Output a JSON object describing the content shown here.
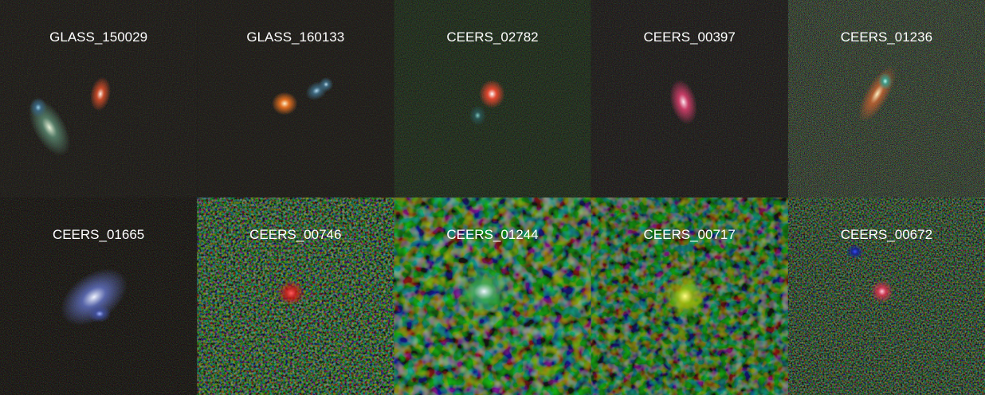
{
  "panels": [
    {
      "label": "GLASS_150029"
    },
    {
      "label": "GLASS_160133"
    },
    {
      "label": "CEERS_02782"
    },
    {
      "label": "CEERS_00397"
    },
    {
      "label": "CEERS_01236"
    },
    {
      "label": "CEERS_01665"
    },
    {
      "label": "CEERS_00746"
    },
    {
      "label": "CEERS_01244"
    },
    {
      "label": "CEERS_00717"
    },
    {
      "label": "CEERS_00672"
    }
  ]
}
